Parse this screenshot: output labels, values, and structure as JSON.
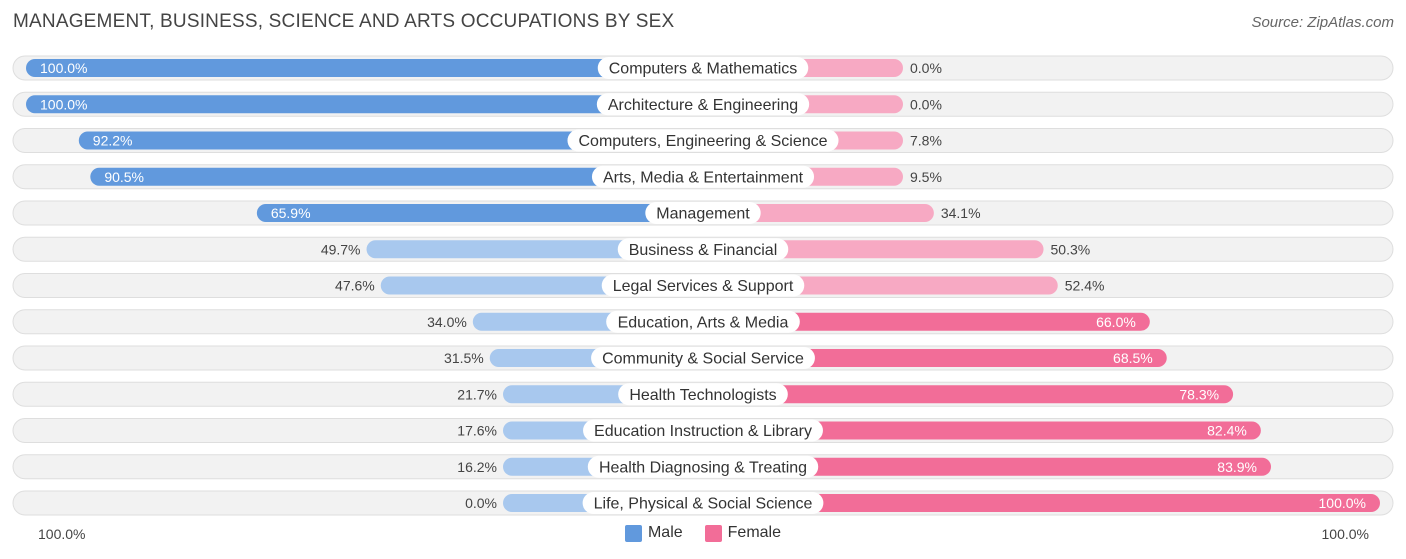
{
  "header": {
    "title": "MANAGEMENT, BUSINESS, SCIENCE AND ARTS OCCUPATIONS BY SEX",
    "source": "Source: ZipAtlas.com"
  },
  "legend": {
    "male_label": "Male",
    "female_label": "Female"
  },
  "axis": {
    "left_label": "100.0%",
    "right_label": "100.0%"
  },
  "colors": {
    "male_strong": "#6199dd",
    "male_light": "#a8c8ee",
    "female_strong": "#f26d98",
    "female_light": "#f7a9c3",
    "row_bg": "#f2f2f2",
    "row_border": "#dedede"
  },
  "chart_data": {
    "type": "bar",
    "orientation": "horizontal-diverging",
    "title": "MANAGEMENT, BUSINESS, SCIENCE AND ARTS OCCUPATIONS BY SEX",
    "xlim": [
      -100,
      100
    ],
    "categories": [
      "Computers & Mathematics",
      "Architecture & Engineering",
      "Computers, Engineering & Science",
      "Arts, Media & Entertainment",
      "Management",
      "Business & Financial",
      "Legal Services & Support",
      "Education, Arts & Media",
      "Community & Social Service",
      "Health Technologists",
      "Education Instruction & Library",
      "Health Diagnosing & Treating",
      "Life, Physical & Social Science"
    ],
    "series": [
      {
        "name": "Male",
        "values": [
          100.0,
          100.0,
          92.2,
          90.5,
          65.9,
          49.7,
          47.6,
          34.0,
          31.5,
          21.7,
          17.6,
          16.2,
          0.0
        ],
        "labels": [
          "100.0%",
          "100.0%",
          "92.2%",
          "90.5%",
          "65.9%",
          "49.7%",
          "47.6%",
          "34.0%",
          "31.5%",
          "21.7%",
          "17.6%",
          "16.2%",
          "0.0%"
        ]
      },
      {
        "name": "Female",
        "values": [
          0.0,
          0.0,
          7.8,
          9.5,
          34.1,
          50.3,
          52.4,
          66.0,
          68.5,
          78.3,
          82.4,
          83.9,
          100.0
        ],
        "labels": [
          "0.0%",
          "0.0%",
          "7.8%",
          "9.5%",
          "34.1%",
          "50.3%",
          "52.4%",
          "66.0%",
          "68.5%",
          "78.3%",
          "82.4%",
          "83.9%",
          "100.0%"
        ]
      }
    ]
  }
}
